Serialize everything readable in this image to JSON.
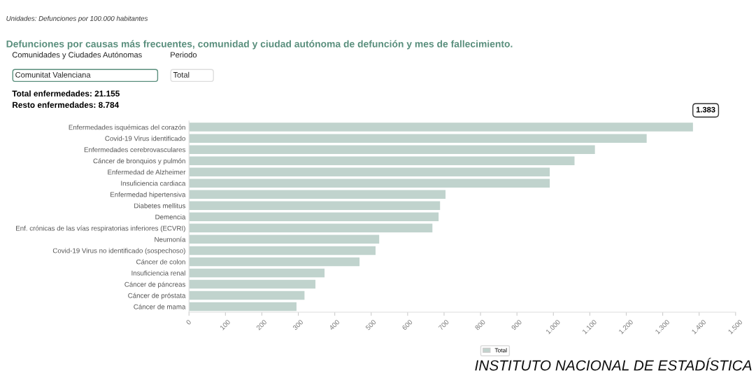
{
  "chart_data": {
    "type": "bar",
    "orientation": "horizontal",
    "title": "Defunciones por causas más frecuentes, comunidad y ciudad autónoma de defunción y mes de fallecimiento.",
    "subtitle": "Unidades: Defunciones por 100.000 habitantes",
    "categories": [
      "Enfermedades isquémicas del corazón",
      "Covid-19 Virus identificado",
      "Enfermedades cerebrovasculares",
      "Cáncer de bronquios y pulmón",
      "Enfermedad de Alzheimer",
      "Insuficiencia cardiaca",
      "Enfermedad hipertensiva",
      "Diabetes mellitus",
      "Demencia",
      "Enf. crónicas de las vías respiratorias inferiores (ECVRI)",
      "Neumonía",
      "Covid-19 Virus no identificado (sospechoso)",
      "Cáncer de colon",
      "Insuficiencia renal",
      "Cáncer de páncreas",
      "Cáncer de próstata",
      "Cáncer de mama"
    ],
    "series": [
      {
        "name": "Total",
        "color": "#c0d3cd",
        "values": [
          1383,
          1256,
          1114,
          1058,
          990,
          990,
          704,
          689,
          685,
          668,
          522,
          512,
          468,
          372,
          347,
          317,
          295
        ]
      }
    ],
    "xlim": [
      0,
      1500
    ],
    "xticks": [
      0,
      100,
      200,
      300,
      400,
      500,
      600,
      700,
      800,
      900,
      {
        "value": 1000,
        "label": "1.000"
      },
      {
        "value": 1100,
        "label": "1.100"
      },
      {
        "value": 1200,
        "label": "1.200"
      },
      {
        "value": 1300,
        "label": "1.300"
      },
      {
        "value": 1400,
        "label": "1.400"
      },
      {
        "value": 1500,
        "label": "1.500"
      }
    ],
    "grid": false,
    "legend": "bottom",
    "annotations": [
      "Comunidades y Ciudades Autónomas",
      "Comunitat Valenciana",
      "Periodo",
      "Total",
      "Total enfermedades: 21.155",
      "Resto enfermedades: 8.784",
      {
        "text": "1.383",
        "x": 1383,
        "y": "Enfermedades isquémicas del corazón"
      },
      "INSTITUTO NACIONAL DE ESTADÍSTICA"
    ]
  }
}
